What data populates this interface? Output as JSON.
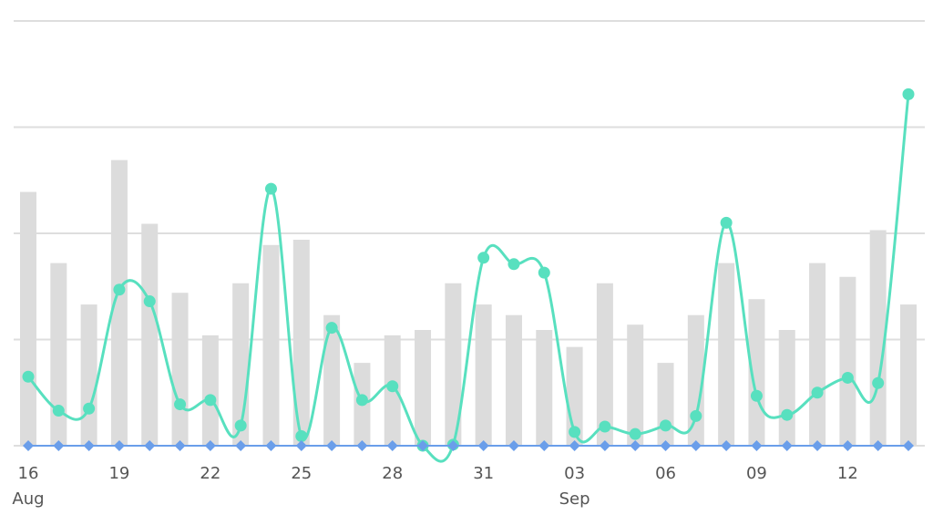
{
  "chart_data": {
    "type": "combo",
    "categories": [
      "16",
      null,
      null,
      "19",
      null,
      null,
      "22",
      null,
      null,
      "25",
      null,
      null,
      "28",
      null,
      null,
      "31",
      null,
      null,
      "03",
      null,
      null,
      "06",
      null,
      null,
      "09",
      null,
      null,
      "12",
      null,
      null
    ],
    "month_labels": [
      "Aug",
      null,
      null,
      null,
      null,
      null,
      null,
      null,
      null,
      null,
      null,
      null,
      null,
      null,
      null,
      null,
      null,
      null,
      "Sep",
      null,
      null,
      null,
      null,
      null,
      null,
      null,
      null,
      null,
      null,
      null
    ],
    "ylim": [
      0,
      4
    ],
    "yticks": [
      0,
      1,
      2,
      3,
      4
    ],
    "grid": true,
    "series": [
      {
        "type": "bar",
        "color": "#dcdcdc",
        "values": [
          2.39,
          1.72,
          1.33,
          2.69,
          2.09,
          1.44,
          1.04,
          1.53,
          1.89,
          1.94,
          1.23,
          0.78,
          1.04,
          1.09,
          1.53,
          1.33,
          1.23,
          1.09,
          0.93,
          1.53,
          1.14,
          0.78,
          1.23,
          1.72,
          1.38,
          1.09,
          1.72,
          1.59,
          2.03,
          1.33
        ]
      },
      {
        "type": "line",
        "color": "#58e0bf",
        "values": [
          0.65,
          0.33,
          0.35,
          1.47,
          1.36,
          0.39,
          0.43,
          0.19,
          2.42,
          0.09,
          1.11,
          0.43,
          0.56,
          0,
          0.01,
          1.77,
          1.71,
          1.63,
          0.13,
          0.18,
          0.11,
          0.19,
          0.28,
          2.1,
          0.47,
          0.29,
          0.5,
          0.64,
          0.59,
          3.31
        ]
      },
      {
        "type": "diamond",
        "color": "#6a9eea",
        "values": [
          0,
          0,
          0,
          0,
          0,
          0,
          0,
          0,
          0,
          0,
          0,
          0,
          0,
          0,
          0,
          0,
          0,
          0,
          0,
          0,
          0,
          0,
          0,
          0,
          0,
          0,
          0,
          0,
          0,
          0
        ]
      }
    ]
  }
}
